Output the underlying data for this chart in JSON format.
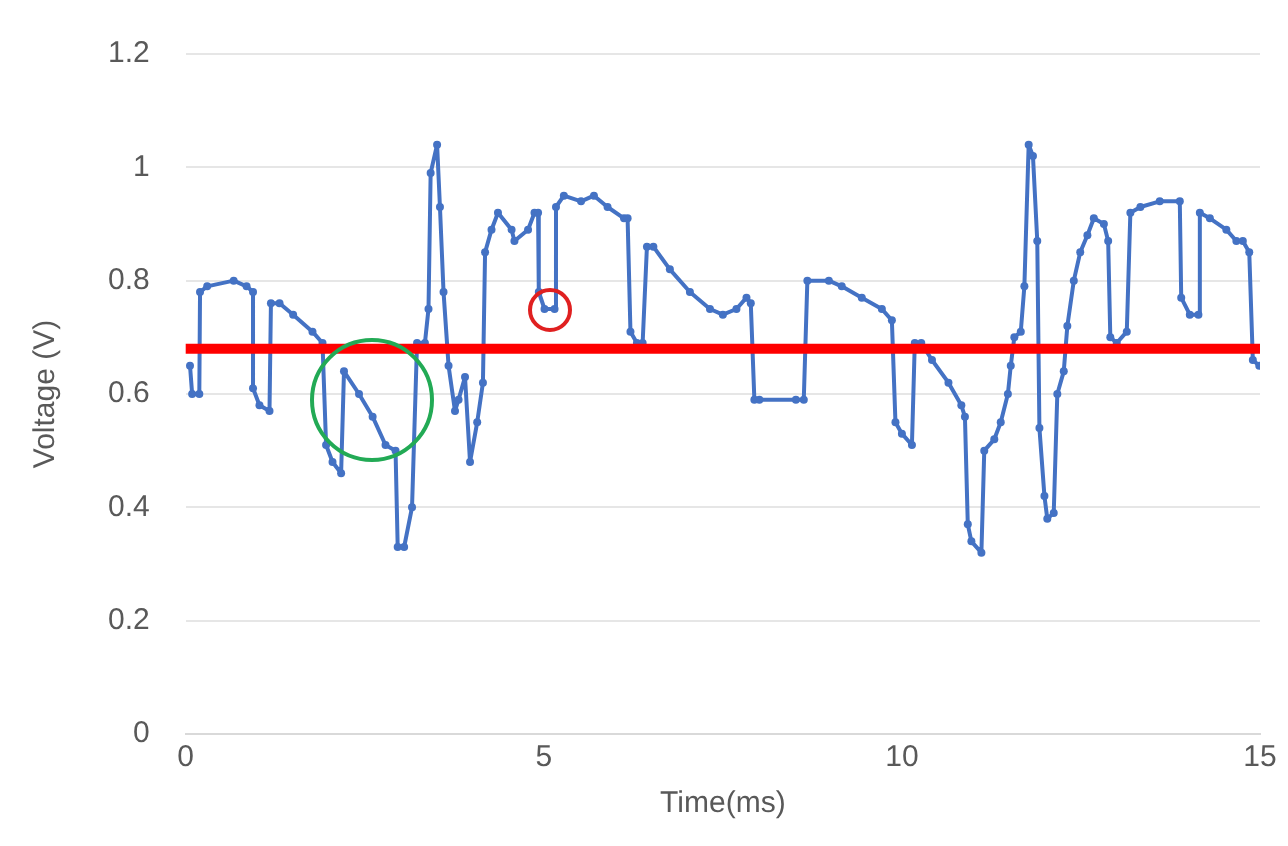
{
  "chart_data": {
    "type": "line",
    "xlabel": "Time(ms)",
    "ylabel": "Voltage (V)",
    "xlim": [
      0,
      15
    ],
    "xticks": [
      0,
      5,
      10,
      15
    ],
    "ylim": [
      0,
      1.2
    ],
    "yticks": [
      0,
      0.2,
      0.4,
      0.6,
      0.8,
      1,
      1.2
    ],
    "grid": "y",
    "legend": false,
    "marker": "circle",
    "line_style": "solid",
    "series": [
      {
        "color": "#4472c4",
        "x": [
          0.06,
          0.09,
          0.19,
          0.2,
          0.3,
          0.67,
          0.85,
          0.94,
          0.94,
          1.03,
          1.17,
          1.19,
          1.31,
          1.5,
          1.77,
          1.91,
          1.96,
          2.05,
          2.17,
          2.21,
          2.42,
          2.61,
          2.79,
          2.93,
          2.96,
          3.05,
          3.16,
          3.23,
          3.34,
          3.39,
          3.42,
          3.51,
          3.55,
          3.6,
          3.67,
          3.76,
          3.81,
          3.9,
          3.97,
          4.07,
          4.15,
          4.18,
          4.27,
          4.36,
          4.55,
          4.59,
          4.78,
          4.87,
          4.92,
          4.93,
          5.01,
          5.15,
          5.17,
          5.28,
          5.52,
          5.7,
          5.89,
          6.12,
          6.17,
          6.21,
          6.3,
          6.38,
          6.44,
          6.53,
          6.76,
          7.04,
          7.32,
          7.5,
          7.69,
          7.83,
          7.89,
          7.94,
          8.01,
          8.52,
          8.63,
          8.68,
          8.98,
          9.16,
          9.44,
          9.72,
          9.86,
          9.91,
          10.0,
          10.14,
          10.18,
          10.27,
          10.42,
          10.65,
          10.83,
          10.88,
          10.92,
          10.97,
          11.11,
          11.15,
          11.29,
          11.38,
          11.48,
          11.52,
          11.57,
          11.66,
          11.71,
          11.77,
          11.83,
          11.89,
          11.92,
          11.99,
          12.03,
          12.12,
          12.17,
          12.26,
          12.31,
          12.4,
          12.49,
          12.59,
          12.68,
          12.82,
          12.88,
          12.91,
          13.0,
          13.14,
          13.19,
          13.33,
          13.6,
          13.88,
          13.9,
          14.02,
          14.14,
          14.16,
          14.3,
          14.53,
          14.67,
          14.76,
          14.85,
          14.9,
          14.99
        ],
        "values": [
          0.65,
          0.6,
          0.6,
          0.78,
          0.79,
          0.8,
          0.79,
          0.78,
          0.61,
          0.58,
          0.57,
          0.76,
          0.76,
          0.74,
          0.71,
          0.69,
          0.51,
          0.48,
          0.46,
          0.64,
          0.6,
          0.56,
          0.51,
          0.5,
          0.33,
          0.33,
          0.4,
          0.69,
          0.69,
          0.75,
          0.99,
          1.04,
          0.93,
          0.78,
          0.65,
          0.57,
          0.59,
          0.63,
          0.48,
          0.55,
          0.62,
          0.85,
          0.89,
          0.92,
          0.89,
          0.87,
          0.89,
          0.92,
          0.92,
          0.78,
          0.75,
          0.75,
          0.93,
          0.95,
          0.94,
          0.95,
          0.93,
          0.91,
          0.91,
          0.71,
          0.69,
          0.69,
          0.86,
          0.86,
          0.82,
          0.78,
          0.75,
          0.74,
          0.75,
          0.77,
          0.76,
          0.59,
          0.59,
          0.59,
          0.59,
          0.8,
          0.8,
          0.79,
          0.77,
          0.75,
          0.73,
          0.55,
          0.53,
          0.51,
          0.69,
          0.69,
          0.66,
          0.62,
          0.58,
          0.56,
          0.37,
          0.34,
          0.32,
          0.5,
          0.52,
          0.55,
          0.6,
          0.65,
          0.7,
          0.71,
          0.79,
          1.04,
          1.02,
          0.87,
          0.54,
          0.42,
          0.38,
          0.39,
          0.6,
          0.64,
          0.72,
          0.8,
          0.85,
          0.88,
          0.91,
          0.9,
          0.87,
          0.7,
          0.69,
          0.71,
          0.92,
          0.93,
          0.94,
          0.94,
          0.77,
          0.74,
          0.74,
          0.92,
          0.91,
          0.89,
          0.87,
          0.87,
          0.85,
          0.66,
          0.65
        ]
      }
    ],
    "ref_lines": [
      {
        "axis": "y",
        "value": 0.68,
        "color": "#ff0000"
      }
    ]
  }
}
